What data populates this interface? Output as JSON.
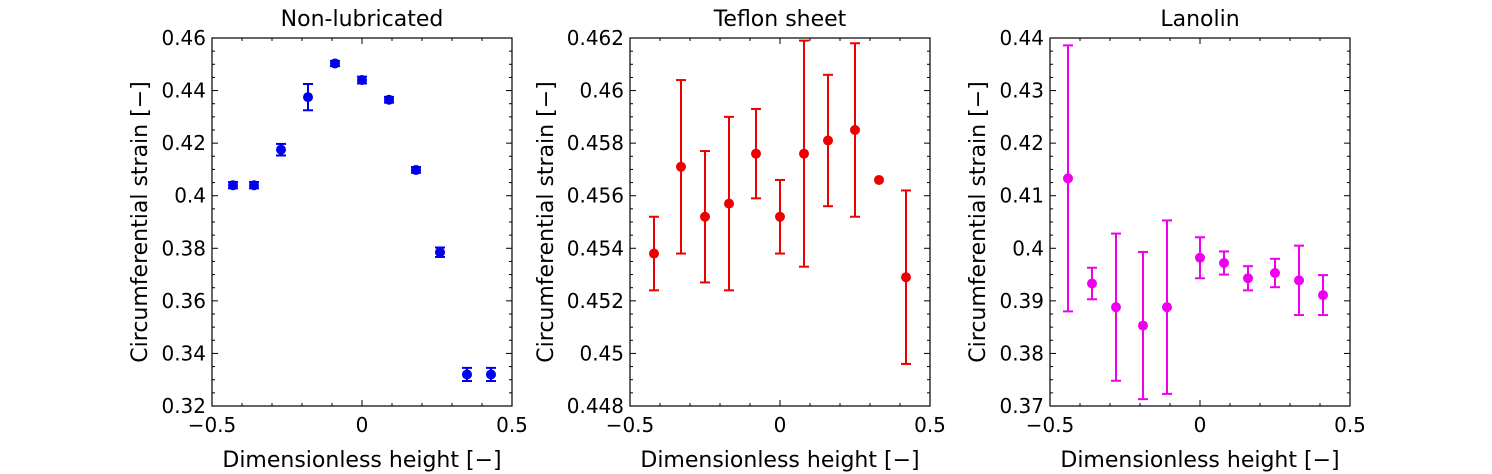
{
  "chart_data": [
    {
      "type": "scatter",
      "title": "Non-lubricated",
      "xlabel": "Dimensionless height [−]",
      "ylabel": "Circumferential strain [−]",
      "xlim": [
        -0.5,
        0.5
      ],
      "ylim": [
        0.32,
        0.46
      ],
      "xticks": [
        -0.5,
        0,
        0.5
      ],
      "xtick_labels": [
        "−0.5",
        "0",
        "0.5"
      ],
      "yticks": [
        0.32,
        0.34,
        0.36,
        0.38,
        0.4,
        0.42,
        0.44,
        0.46
      ],
      "ytick_labels": [
        "0.32",
        "0.34",
        "0.36",
        "0.38",
        "0.4",
        "0.42",
        "0.44",
        "0.46"
      ],
      "color": "#0000ee",
      "grid": false,
      "series": [
        {
          "x": [
            -0.43,
            -0.36,
            -0.27,
            -0.18,
            -0.09,
            0.0,
            0.09,
            0.18,
            0.26,
            0.35,
            0.43
          ],
          "y": [
            0.404,
            0.404,
            0.4175,
            0.4375,
            0.4503,
            0.444,
            0.4365,
            0.4098,
            0.3785,
            0.332,
            0.332
          ],
          "err": [
            0.0012,
            0.0012,
            0.0022,
            0.005,
            0.001,
            0.0013,
            0.0011,
            0.0011,
            0.0018,
            0.0025,
            0.0025
          ]
        }
      ]
    },
    {
      "type": "scatter",
      "title": "Teflon sheet",
      "xlabel": "Dimensionless height [−]",
      "ylabel": "Circumferential strain [−]",
      "xlim": [
        -0.5,
        0.5
      ],
      "ylim": [
        0.448,
        0.462
      ],
      "xticks": [
        -0.5,
        0,
        0.5
      ],
      "xtick_labels": [
        "−0.5",
        "0",
        "0.5"
      ],
      "yticks": [
        0.448,
        0.45,
        0.452,
        0.454,
        0.456,
        0.458,
        0.46,
        0.462
      ],
      "ytick_labels": [
        "0.448",
        "0.45",
        "0.452",
        "0.454",
        "0.456",
        "0.458",
        "0.46",
        "0.462"
      ],
      "color": "#ee0000",
      "grid": false,
      "series": [
        {
          "x": [
            -0.42,
            -0.33,
            -0.25,
            -0.17,
            -0.08,
            0.0,
            0.08,
            0.16,
            0.25,
            0.33,
            0.42
          ],
          "y": [
            0.4538,
            0.4571,
            0.4552,
            0.4557,
            0.4576,
            0.4552,
            0.4576,
            0.4581,
            0.4585,
            0.4566,
            0.4529
          ],
          "err": [
            0.0014,
            0.0033,
            0.0025,
            0.0033,
            0.0017,
            0.0014,
            0.0043,
            0.0025,
            0.0033,
            0.0,
            0.0033
          ]
        }
      ]
    },
    {
      "type": "scatter",
      "title": "Lanolin",
      "xlabel": "Dimensionless height [−]",
      "ylabel": "Circumferential strain [−]",
      "xlim": [
        -0.5,
        0.5
      ],
      "ylim": [
        0.37,
        0.44
      ],
      "xticks": [
        -0.5,
        0,
        0.5
      ],
      "xtick_labels": [
        "−0.5",
        "0",
        "0.5"
      ],
      "yticks": [
        0.37,
        0.38,
        0.39,
        0.4,
        0.41,
        0.42,
        0.43,
        0.44
      ],
      "ytick_labels": [
        "0.37",
        "0.38",
        "0.39",
        "0.4",
        "0.41",
        "0.42",
        "0.43",
        "0.44"
      ],
      "color": "#ee00ee",
      "grid": false,
      "series": [
        {
          "x": [
            -0.44,
            -0.36,
            -0.28,
            -0.19,
            -0.11,
            0.0,
            0.08,
            0.16,
            0.25,
            0.33,
            0.41
          ],
          "y": [
            0.4133,
            0.3933,
            0.3888,
            0.3853,
            0.3888,
            0.3982,
            0.3972,
            0.3943,
            0.3953,
            0.3939,
            0.3911
          ],
          "err": [
            0.0253,
            0.003,
            0.014,
            0.014,
            0.0165,
            0.0039,
            0.0022,
            0.0023,
            0.0027,
            0.0066,
            0.0038
          ]
        }
      ]
    }
  ]
}
